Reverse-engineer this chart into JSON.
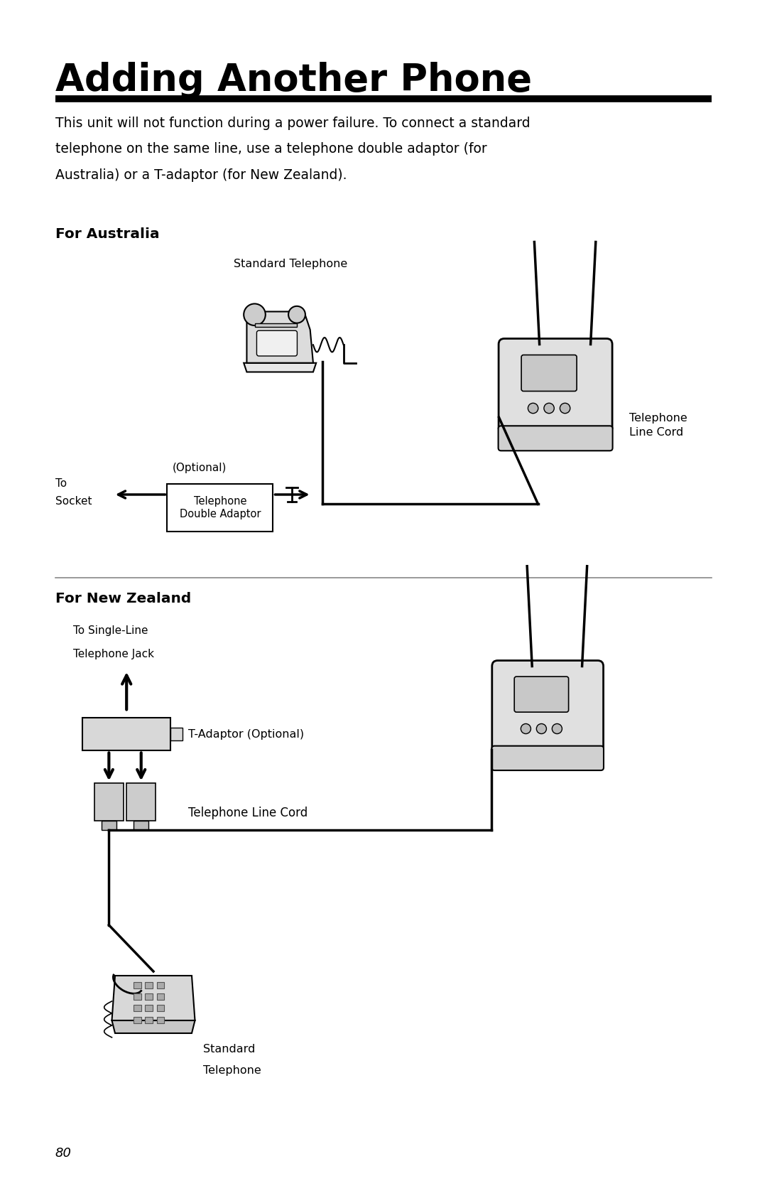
{
  "title": "Adding Another Phone",
  "title_fontsize": 38,
  "body_text_line1": "This unit will not function during a power failure. To connect a standard",
  "body_text_line2": "telephone on the same line, use a telephone double adaptor (for",
  "body_text_line3": "Australia) or a T-adaptor (for New Zealand).",
  "body_fontsize": 13.5,
  "section1_header": "For Australia",
  "section2_header": "For New Zealand",
  "section_header_fontsize": 14.5,
  "page_number": "80",
  "page_number_fontsize": 13,
  "background_color": "#ffffff",
  "text_color": "#000000",
  "ml": 0.072,
  "mr": 0.928,
  "diagram1_label_stdtel": "Standard Telephone",
  "diagram1_label_opt": "(Optional)",
  "diagram1_label_tosocket_1": "To",
  "diagram1_label_tosocket_2": "Socket",
  "diagram1_label_adaptor_1": "Telephone",
  "diagram1_label_adaptor_2": "Double Adaptor",
  "diagram1_label_tel_line_1": "Telephone",
  "diagram1_label_tel_line_2": "Line Cord",
  "diagram2_label_single_line_1": "To Single-Line",
  "diagram2_label_single_line_2": "Telephone Jack",
  "diagram2_label_tadaptor": "T-Adaptor (Optional)",
  "diagram2_label_tel_line": "Telephone Line Cord",
  "diagram2_label_stdtel_1": "Standard",
  "diagram2_label_stdtel_2": "Telephone"
}
